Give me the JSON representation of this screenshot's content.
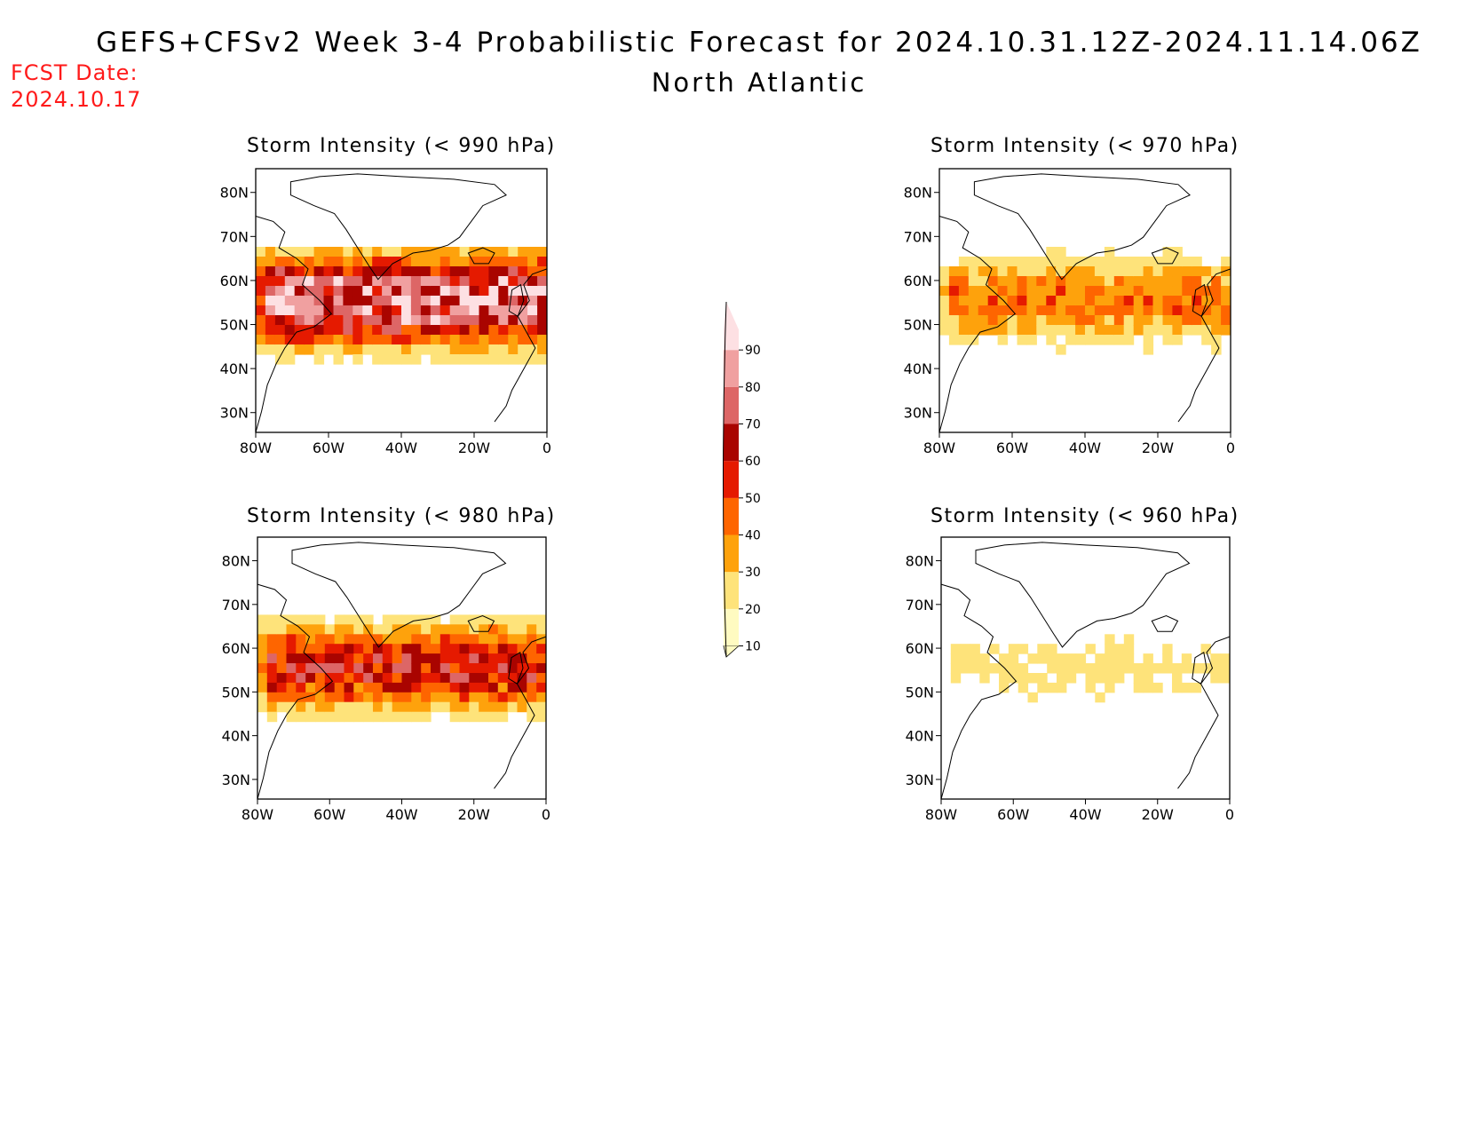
{
  "title": "GEFS+CFSv2 Week 3-4 Probabilistic Forecast for 2024.10.31.12Z-2024.11.14.06Z",
  "subtitle": "North Atlantic",
  "fcst_date_label": "FCST Date:",
  "fcst_date_value": "2024.10.17",
  "colorbar": {
    "levels": [
      "10",
      "20",
      "30",
      "40",
      "50",
      "60",
      "70",
      "80",
      "90"
    ],
    "colors": [
      "#fffbc1",
      "#fee37a",
      "#fea20c",
      "#fe6500",
      "#e51a00",
      "#a90400",
      "#dd6666",
      "#f0a0a0",
      "#fde0e3"
    ]
  },
  "map_axes": {
    "lon_ticks": [
      "80W",
      "60W",
      "40W",
      "20W",
      "0"
    ],
    "lat_ticks": [
      "80N",
      "70N",
      "60N",
      "50N",
      "40N",
      "30N"
    ]
  },
  "panels": [
    {
      "id": "p990",
      "title": "Storm Intensity (< 990 hPa)",
      "intensity": 1.0
    },
    {
      "id": "p970",
      "title": "Storm Intensity (< 970 hPa)",
      "intensity": 0.42
    },
    {
      "id": "p980",
      "title": "Storm Intensity (< 980 hPa)",
      "intensity": 0.7
    },
    {
      "id": "p960",
      "title": "Storm Intensity (< 960 hPa)",
      "intensity": 0.18
    }
  ]
}
